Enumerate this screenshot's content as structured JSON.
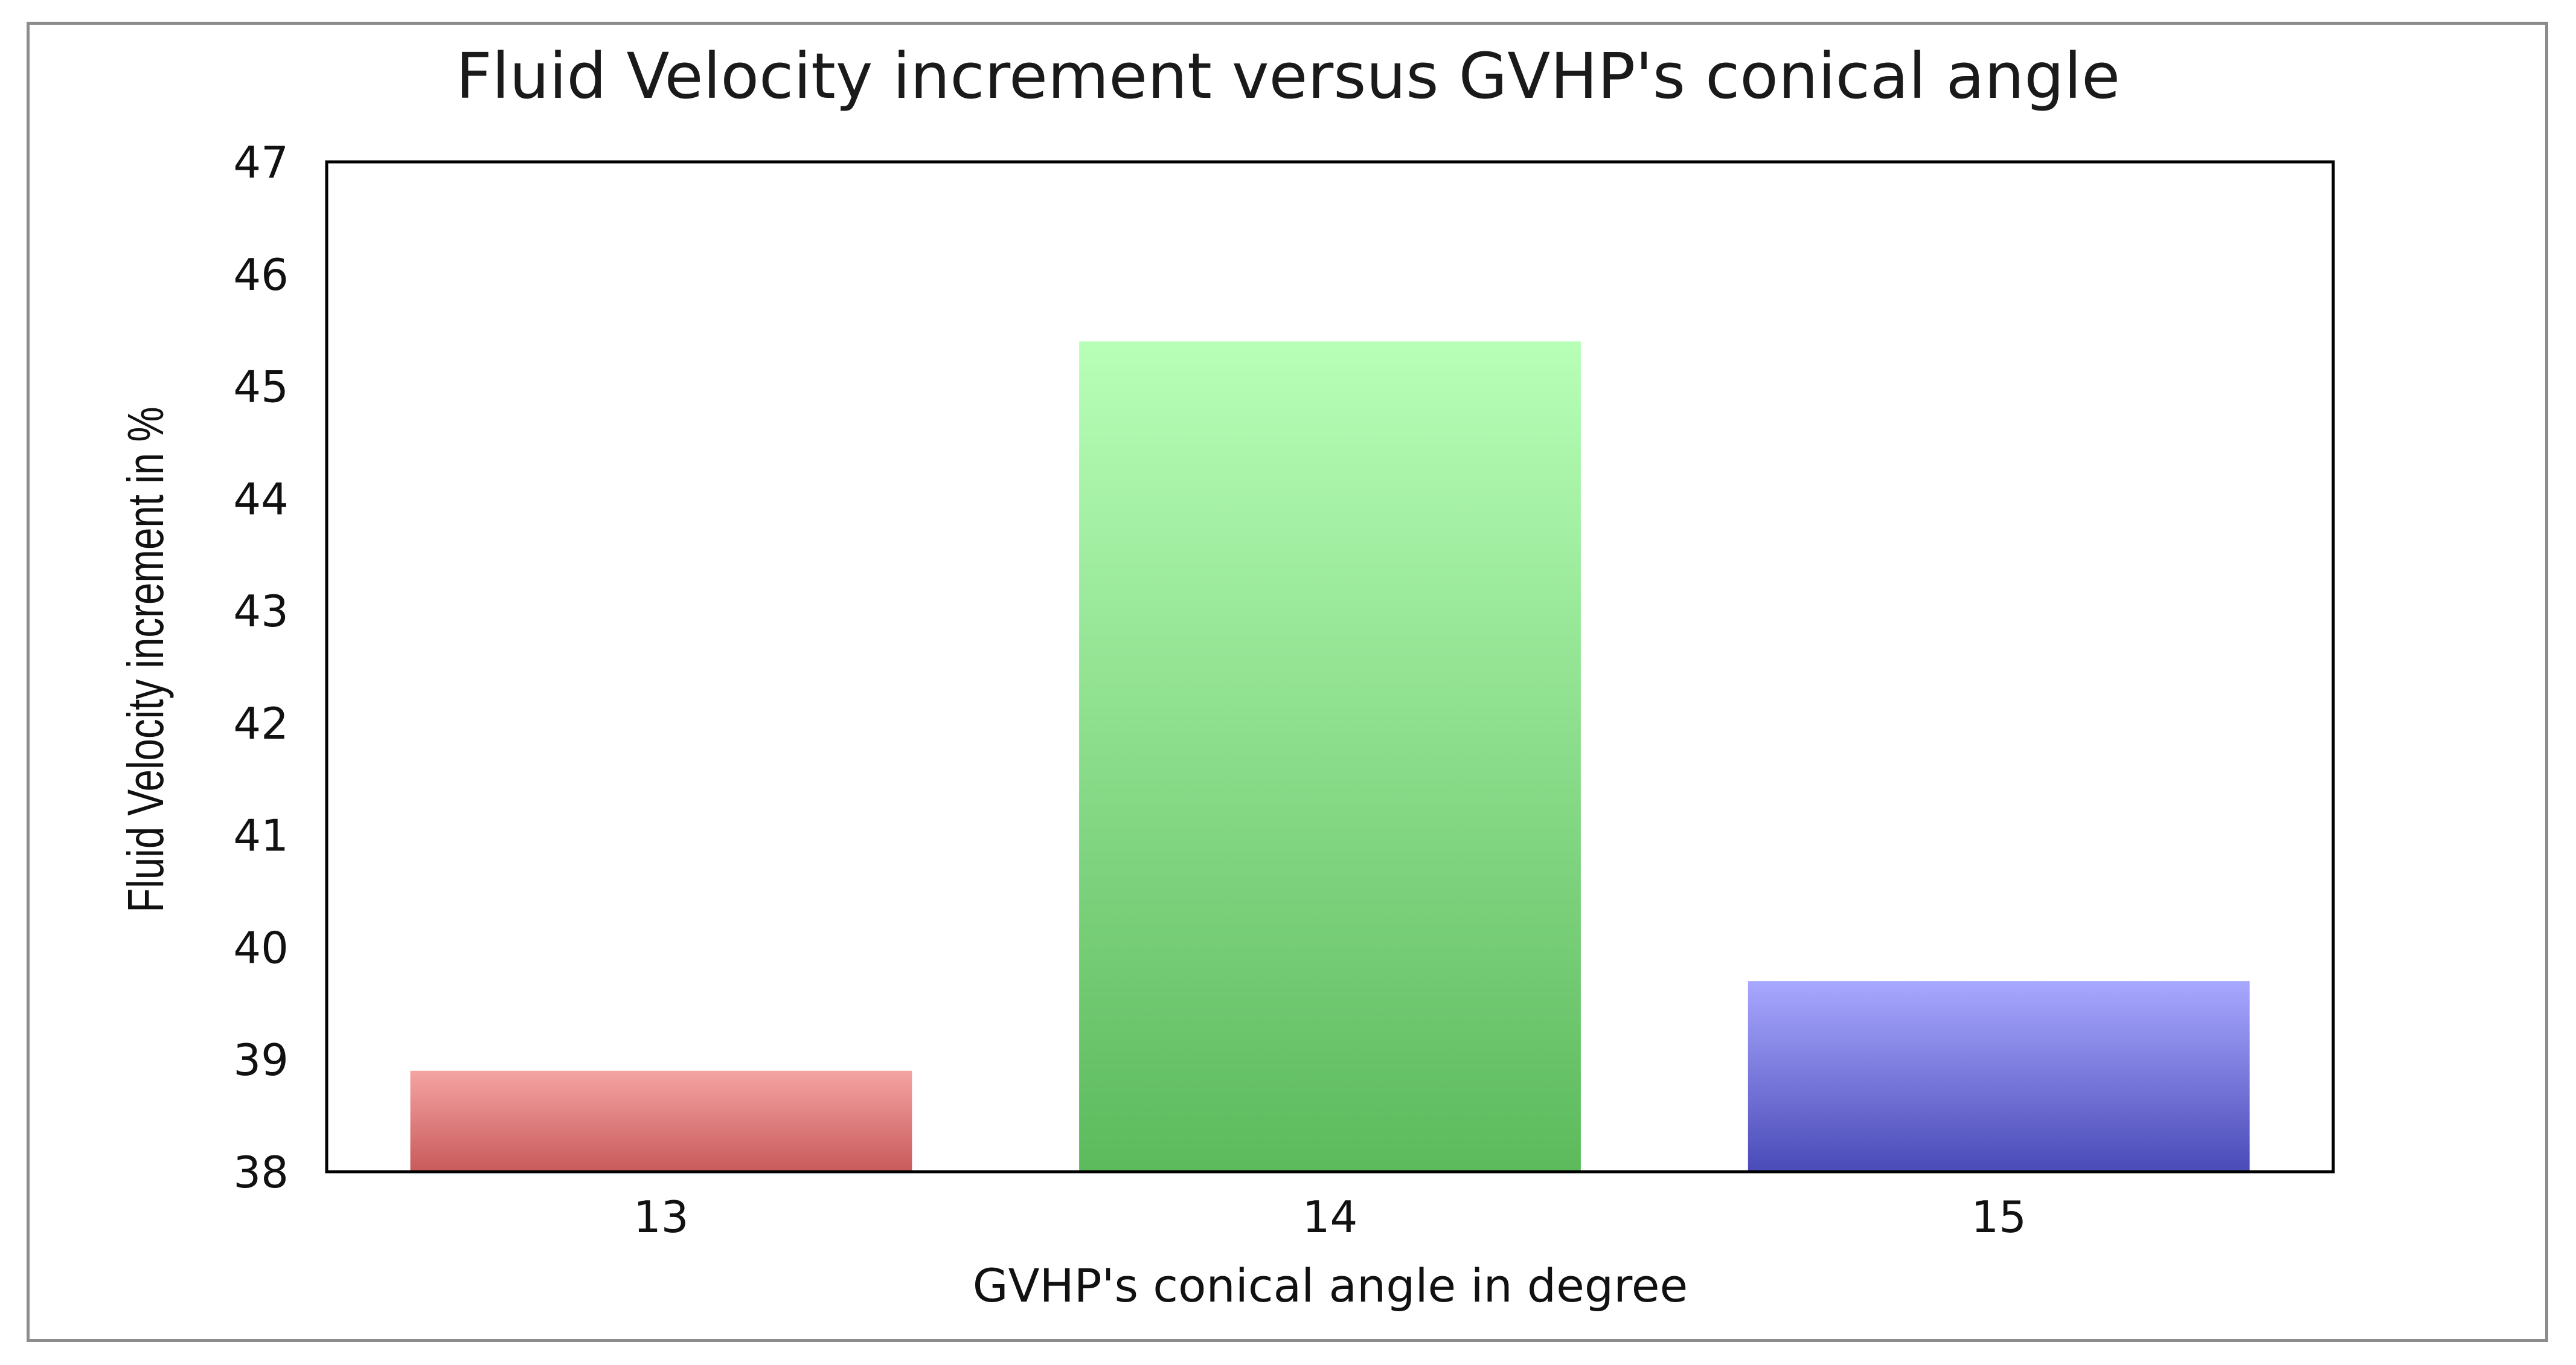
{
  "chart_data": {
    "type": "bar",
    "title": "Fluid Velocity increment versus GVHP's conical angle",
    "xlabel": "GVHP's conical angle in degree",
    "ylabel": "Fluid Velocity increment in %",
    "categories": [
      "13",
      "14",
      "15"
    ],
    "values": [
      38.9,
      45.4,
      39.7
    ],
    "ylim": [
      38,
      47
    ],
    "yticks": [
      "38",
      "39",
      "40",
      "41",
      "42",
      "43",
      "44",
      "45",
      "46",
      "47"
    ],
    "grid": false,
    "legend": "none",
    "bar_colors": [
      {
        "top": "#f5a3a3",
        "bottom": "#c85a5a"
      },
      {
        "top": "#b8ffb8",
        "bottom": "#5cba5c"
      },
      {
        "top": "#a8a8ff",
        "bottom": "#4a4ab8"
      }
    ]
  }
}
